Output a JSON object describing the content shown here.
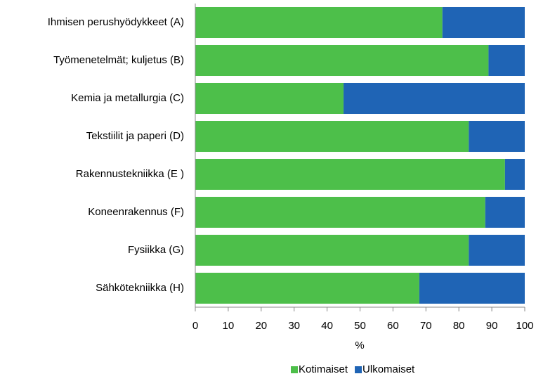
{
  "chart_data": {
    "type": "bar_stacked_horizontal",
    "categories": [
      "Ihmisen perushyödykkeet (A)",
      "Työmenetelmät; kuljetus (B)",
      "Kemia ja metallurgia (C)",
      "Tekstiilit ja paperi (D)",
      "Rakennustekniikka (E )",
      "Koneenrakennus (F)",
      "Fysiikka (G)",
      "Sähkötekniikka (H)"
    ],
    "series": [
      {
        "name": "Kotimaiset",
        "color": "#4dbf4a",
        "values": [
          75,
          89,
          45,
          83,
          94,
          88,
          83,
          68
        ]
      },
      {
        "name": "Ulkomaiset",
        "color": "#1f64b5",
        "values": [
          25,
          11,
          55,
          17,
          6,
          12,
          17,
          32
        ]
      }
    ],
    "xlabel": "%",
    "xlim": [
      0,
      100
    ],
    "xticks": [
      0,
      10,
      20,
      30,
      40,
      50,
      60,
      70,
      80,
      90,
      100
    ],
    "legend": "bottom"
  }
}
